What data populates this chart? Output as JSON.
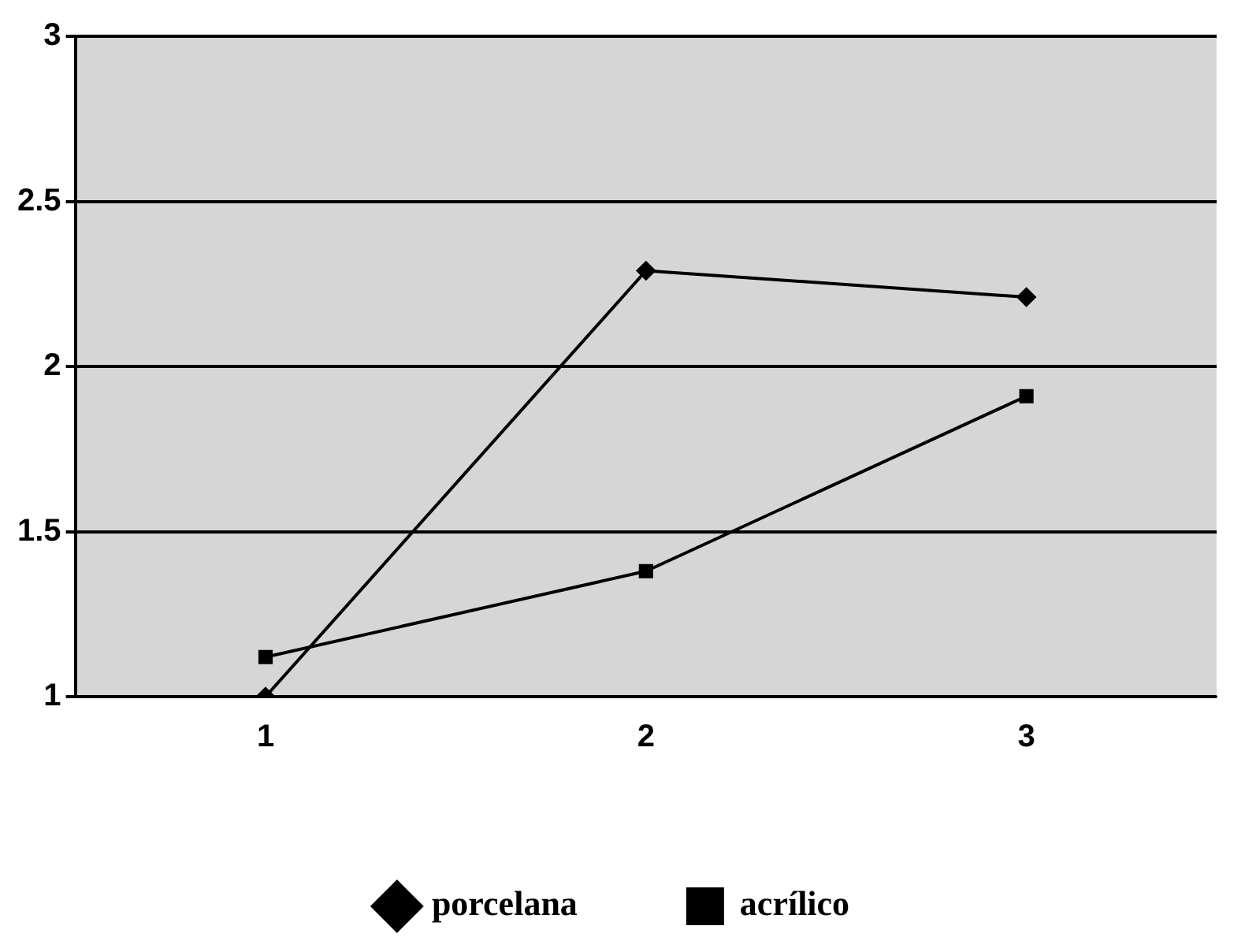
{
  "chart_data": {
    "type": "line",
    "categories": [
      "1",
      "2",
      "3"
    ],
    "series": [
      {
        "name": "porcelana",
        "color": "#000000",
        "marker": "diamond",
        "values": [
          1.0,
          2.29,
          2.21
        ]
      },
      {
        "name": "acrílico",
        "color": "#000000",
        "marker": "square",
        "values": [
          1.12,
          1.38,
          1.91
        ]
      }
    ],
    "ylim": [
      1,
      3
    ],
    "yticks": [
      1,
      1.5,
      2,
      2.5,
      3
    ],
    "grid": "y",
    "legend": "bottom",
    "line_style": "solid"
  }
}
